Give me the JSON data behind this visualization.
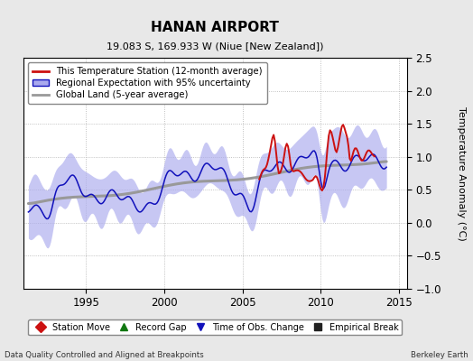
{
  "title": "HANAN AIRPORT",
  "subtitle": "19.083 S, 169.933 W (Niue [New Zealand])",
  "ylabel": "Temperature Anomaly (°C)",
  "footer_left": "Data Quality Controlled and Aligned at Breakpoints",
  "footer_right": "Berkeley Earth",
  "xlim": [
    1991.0,
    2015.5
  ],
  "ylim": [
    -1.0,
    2.5
  ],
  "yticks": [
    -1.0,
    -0.5,
    0.0,
    0.5,
    1.0,
    1.5,
    2.0,
    2.5
  ],
  "xticks": [
    1995,
    2000,
    2005,
    2010,
    2015
  ],
  "background_color": "#e8e8e8",
  "plot_bg_color": "#ffffff",
  "grid_color": "#b0b0b0",
  "regional_fill_color": "#aaaaee",
  "regional_line_color": "#1111bb",
  "station_color": "#cc1111",
  "global_color": "#999999",
  "legend1_items": [
    {
      "label": "This Temperature Station (12-month average)"
    },
    {
      "label": "Regional Expectation with 95% uncertainty"
    },
    {
      "label": "Global Land (5-year average)"
    }
  ],
  "legend2_items": [
    {
      "label": "Station Move",
      "marker": "D",
      "color": "#cc1111"
    },
    {
      "label": "Record Gap",
      "marker": "^",
      "color": "#117711"
    },
    {
      "label": "Time of Obs. Change",
      "marker": "v",
      "color": "#1111bb"
    },
    {
      "label": "Empirical Break",
      "marker": "s",
      "color": "#222222"
    }
  ]
}
